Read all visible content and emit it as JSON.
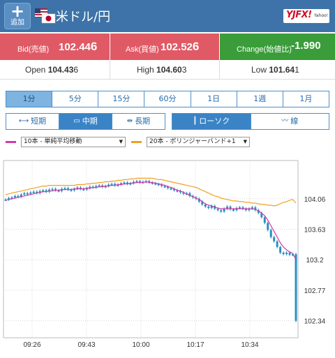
{
  "header": {
    "add_button_label": "追加",
    "pair_title": "米ドル/円",
    "logo_text": "YJFX!",
    "logo_sub": "Yahoo!"
  },
  "quotes": {
    "bid_label": "Bid(売値)",
    "bid_main": "102.44",
    "bid_pip": "6",
    "ask_label": "Ask(買値)",
    "ask_main": "102.52",
    "ask_pip": "6",
    "change_label": "Change(始値比)",
    "change_value": "-1.990"
  },
  "ohl": {
    "open_label": "Open",
    "open_main": "104.43",
    "open_pip": "6",
    "high_label": "High",
    "high_main": "104.60",
    "high_pip": "3",
    "low_label": "Low",
    "low_main": "101.64",
    "low_pip": "1"
  },
  "timeframes": [
    "1分",
    "5分",
    "15分",
    "60分",
    "1日",
    "1週",
    "1月"
  ],
  "active_timeframe": "1分",
  "range_buttons": {
    "short": "短期",
    "mid": "中期",
    "long": "長期"
  },
  "style_buttons": {
    "candle": "ローソク",
    "line": "線"
  },
  "indicators": {
    "ma_label": "10本 - 単純平均移動",
    "ma_color": "#d63aa8",
    "bb_label": "20本 - ボリンジャーバンド+1",
    "bb_color": "#f0a020"
  },
  "colors": {
    "header": "#3d73a8",
    "bid_ask": "#e05a66",
    "change": "#3a9d3a",
    "candle": "#2a8fc0"
  },
  "chart_data": {
    "type": "line",
    "yticks": [
      "104.06",
      "103.63",
      "103.2",
      "102.77",
      "102.34"
    ],
    "ytick_values": [
      104.06,
      103.63,
      103.2,
      102.77,
      102.34
    ],
    "xticks": [
      "09:26",
      "09:43",
      "10:00",
      "10:17",
      "10:34"
    ],
    "ylim": [
      102.1,
      104.6
    ],
    "close": [
      104.05,
      104.07,
      104.08,
      104.1,
      104.09,
      104.12,
      104.14,
      104.13,
      104.15,
      104.16,
      104.14,
      104.17,
      104.18,
      104.16,
      104.19,
      104.2,
      104.18,
      104.17,
      104.2,
      104.21,
      104.19,
      104.18,
      104.2,
      104.22,
      104.2,
      104.19,
      104.21,
      104.23,
      104.22,
      104.24,
      104.25,
      104.23,
      104.24,
      104.26,
      104.27,
      104.25,
      104.26,
      104.28,
      104.29,
      104.27,
      104.28,
      104.3,
      104.31,
      104.29,
      104.3,
      104.31,
      104.29,
      104.28,
      104.27,
      104.26,
      104.24,
      104.23,
      104.21,
      104.2,
      104.18,
      104.17,
      104.15,
      104.13,
      104.14,
      104.1,
      104.08,
      104.06,
      104.02,
      103.98,
      103.95,
      103.93,
      103.96,
      103.92,
      103.9,
      103.88,
      103.92,
      103.95,
      103.91,
      103.9,
      103.93,
      103.94,
      103.92,
      103.9,
      103.92,
      103.94,
      103.9,
      103.86,
      103.8,
      103.72,
      103.62,
      103.52,
      103.46,
      103.38,
      103.3,
      103.28,
      103.3,
      103.27,
      103.28,
      102.34
    ],
    "ma10": [
      104.04,
      104.05,
      104.06,
      104.07,
      104.08,
      104.09,
      104.1,
      104.11,
      104.12,
      104.13,
      104.14,
      104.15,
      104.16,
      104.16,
      104.17,
      104.17,
      104.18,
      104.18,
      104.19,
      104.19,
      104.19,
      104.19,
      104.2,
      104.2,
      104.2,
      104.2,
      104.21,
      104.21,
      104.22,
      104.22,
      104.23,
      104.23,
      104.24,
      104.24,
      104.25,
      104.25,
      104.26,
      104.26,
      104.27,
      104.27,
      104.28,
      104.28,
      104.29,
      104.29,
      104.29,
      104.3,
      104.29,
      104.29,
      104.28,
      104.27,
      104.26,
      104.25,
      104.23,
      104.22,
      104.2,
      104.18,
      104.17,
      104.15,
      104.13,
      104.11,
      104.09,
      104.07,
      104.05,
      104.02,
      103.99,
      103.97,
      103.96,
      103.94,
      103.93,
      103.92,
      103.92,
      103.92,
      103.92,
      103.92,
      103.92,
      103.92,
      103.92,
      103.92,
      103.92,
      103.92,
      103.91,
      103.89,
      103.86,
      103.82,
      103.76,
      103.68,
      103.6,
      103.52,
      103.44,
      103.38,
      103.34,
      103.31,
      103.29,
      103.2
    ],
    "bb_upper": [
      104.12,
      104.13,
      104.14,
      104.15,
      104.16,
      104.17,
      104.18,
      104.19,
      104.2,
      104.21,
      104.22,
      104.23,
      104.24,
      104.24,
      104.25,
      104.25,
      104.25,
      104.25,
      104.25,
      104.25,
      104.25,
      104.25,
      104.25,
      104.26,
      104.26,
      104.26,
      104.27,
      104.27,
      104.28,
      104.28,
      104.29,
      104.29,
      104.3,
      104.3,
      104.31,
      104.31,
      104.32,
      104.32,
      104.33,
      104.33,
      104.34,
      104.34,
      104.35,
      104.35,
      104.35,
      104.35,
      104.35,
      104.35,
      104.34,
      104.33,
      104.33,
      104.32,
      104.31,
      104.3,
      104.29,
      104.28,
      104.27,
      104.26,
      104.25,
      104.24,
      104.23,
      104.22,
      104.2,
      104.18,
      104.16,
      104.14,
      104.12,
      104.1,
      104.09,
      104.07,
      104.06,
      104.05,
      104.04,
      104.03,
      104.03,
      104.02,
      104.02,
      104.01,
      104.01,
      104.0,
      104.0,
      103.99,
      103.98,
      103.98,
      103.97,
      103.97,
      103.96,
      103.97,
      103.99,
      104.01,
      104.02,
      104.04,
      104.05,
      104.0
    ]
  }
}
